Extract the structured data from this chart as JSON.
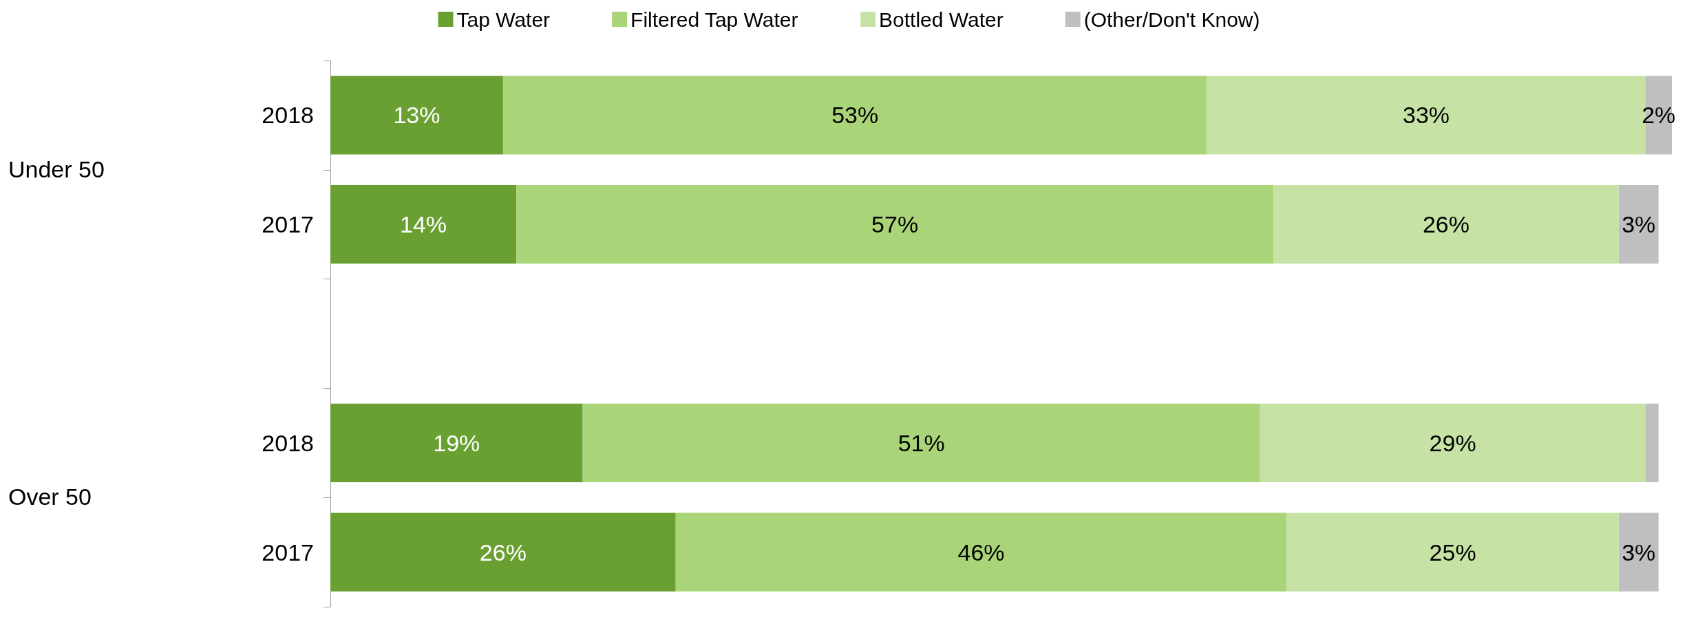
{
  "chart_data": {
    "type": "bar",
    "orientation": "horizontal",
    "stacked": true,
    "categories": [
      "2018",
      "2017",
      null,
      "2018",
      "2017"
    ],
    "annotations": [
      "Under 50",
      "Over 50"
    ],
    "xlim": [
      0,
      101
    ],
    "tick_labels": "y",
    "legend": "top",
    "series": [
      {
        "name": "Tap Water",
        "color": "#6aa032",
        "values": [
          13,
          14,
          null,
          19,
          26
        ],
        "value_labels": [
          "13%",
          "14%",
          null,
          "19%",
          "26%"
        ]
      },
      {
        "name": "Filtered Tap Water",
        "color": "#a9d578",
        "values": [
          53,
          57,
          null,
          51,
          46
        ],
        "value_labels": [
          "53%",
          "57%",
          null,
          "51%",
          "46%"
        ]
      },
      {
        "name": "Bottled Water",
        "color": "#c6e3a5",
        "values": [
          33,
          26,
          null,
          29,
          25
        ],
        "value_labels": [
          "33%",
          "26%",
          null,
          "29%",
          "25%"
        ]
      },
      {
        "name": "(Other/Don't Know)",
        "color": "#bfbfbf",
        "values": [
          2,
          3,
          null,
          1,
          3
        ],
        "value_labels": [
          "2%",
          "3%",
          null,
          null,
          "3%"
        ]
      }
    ]
  }
}
